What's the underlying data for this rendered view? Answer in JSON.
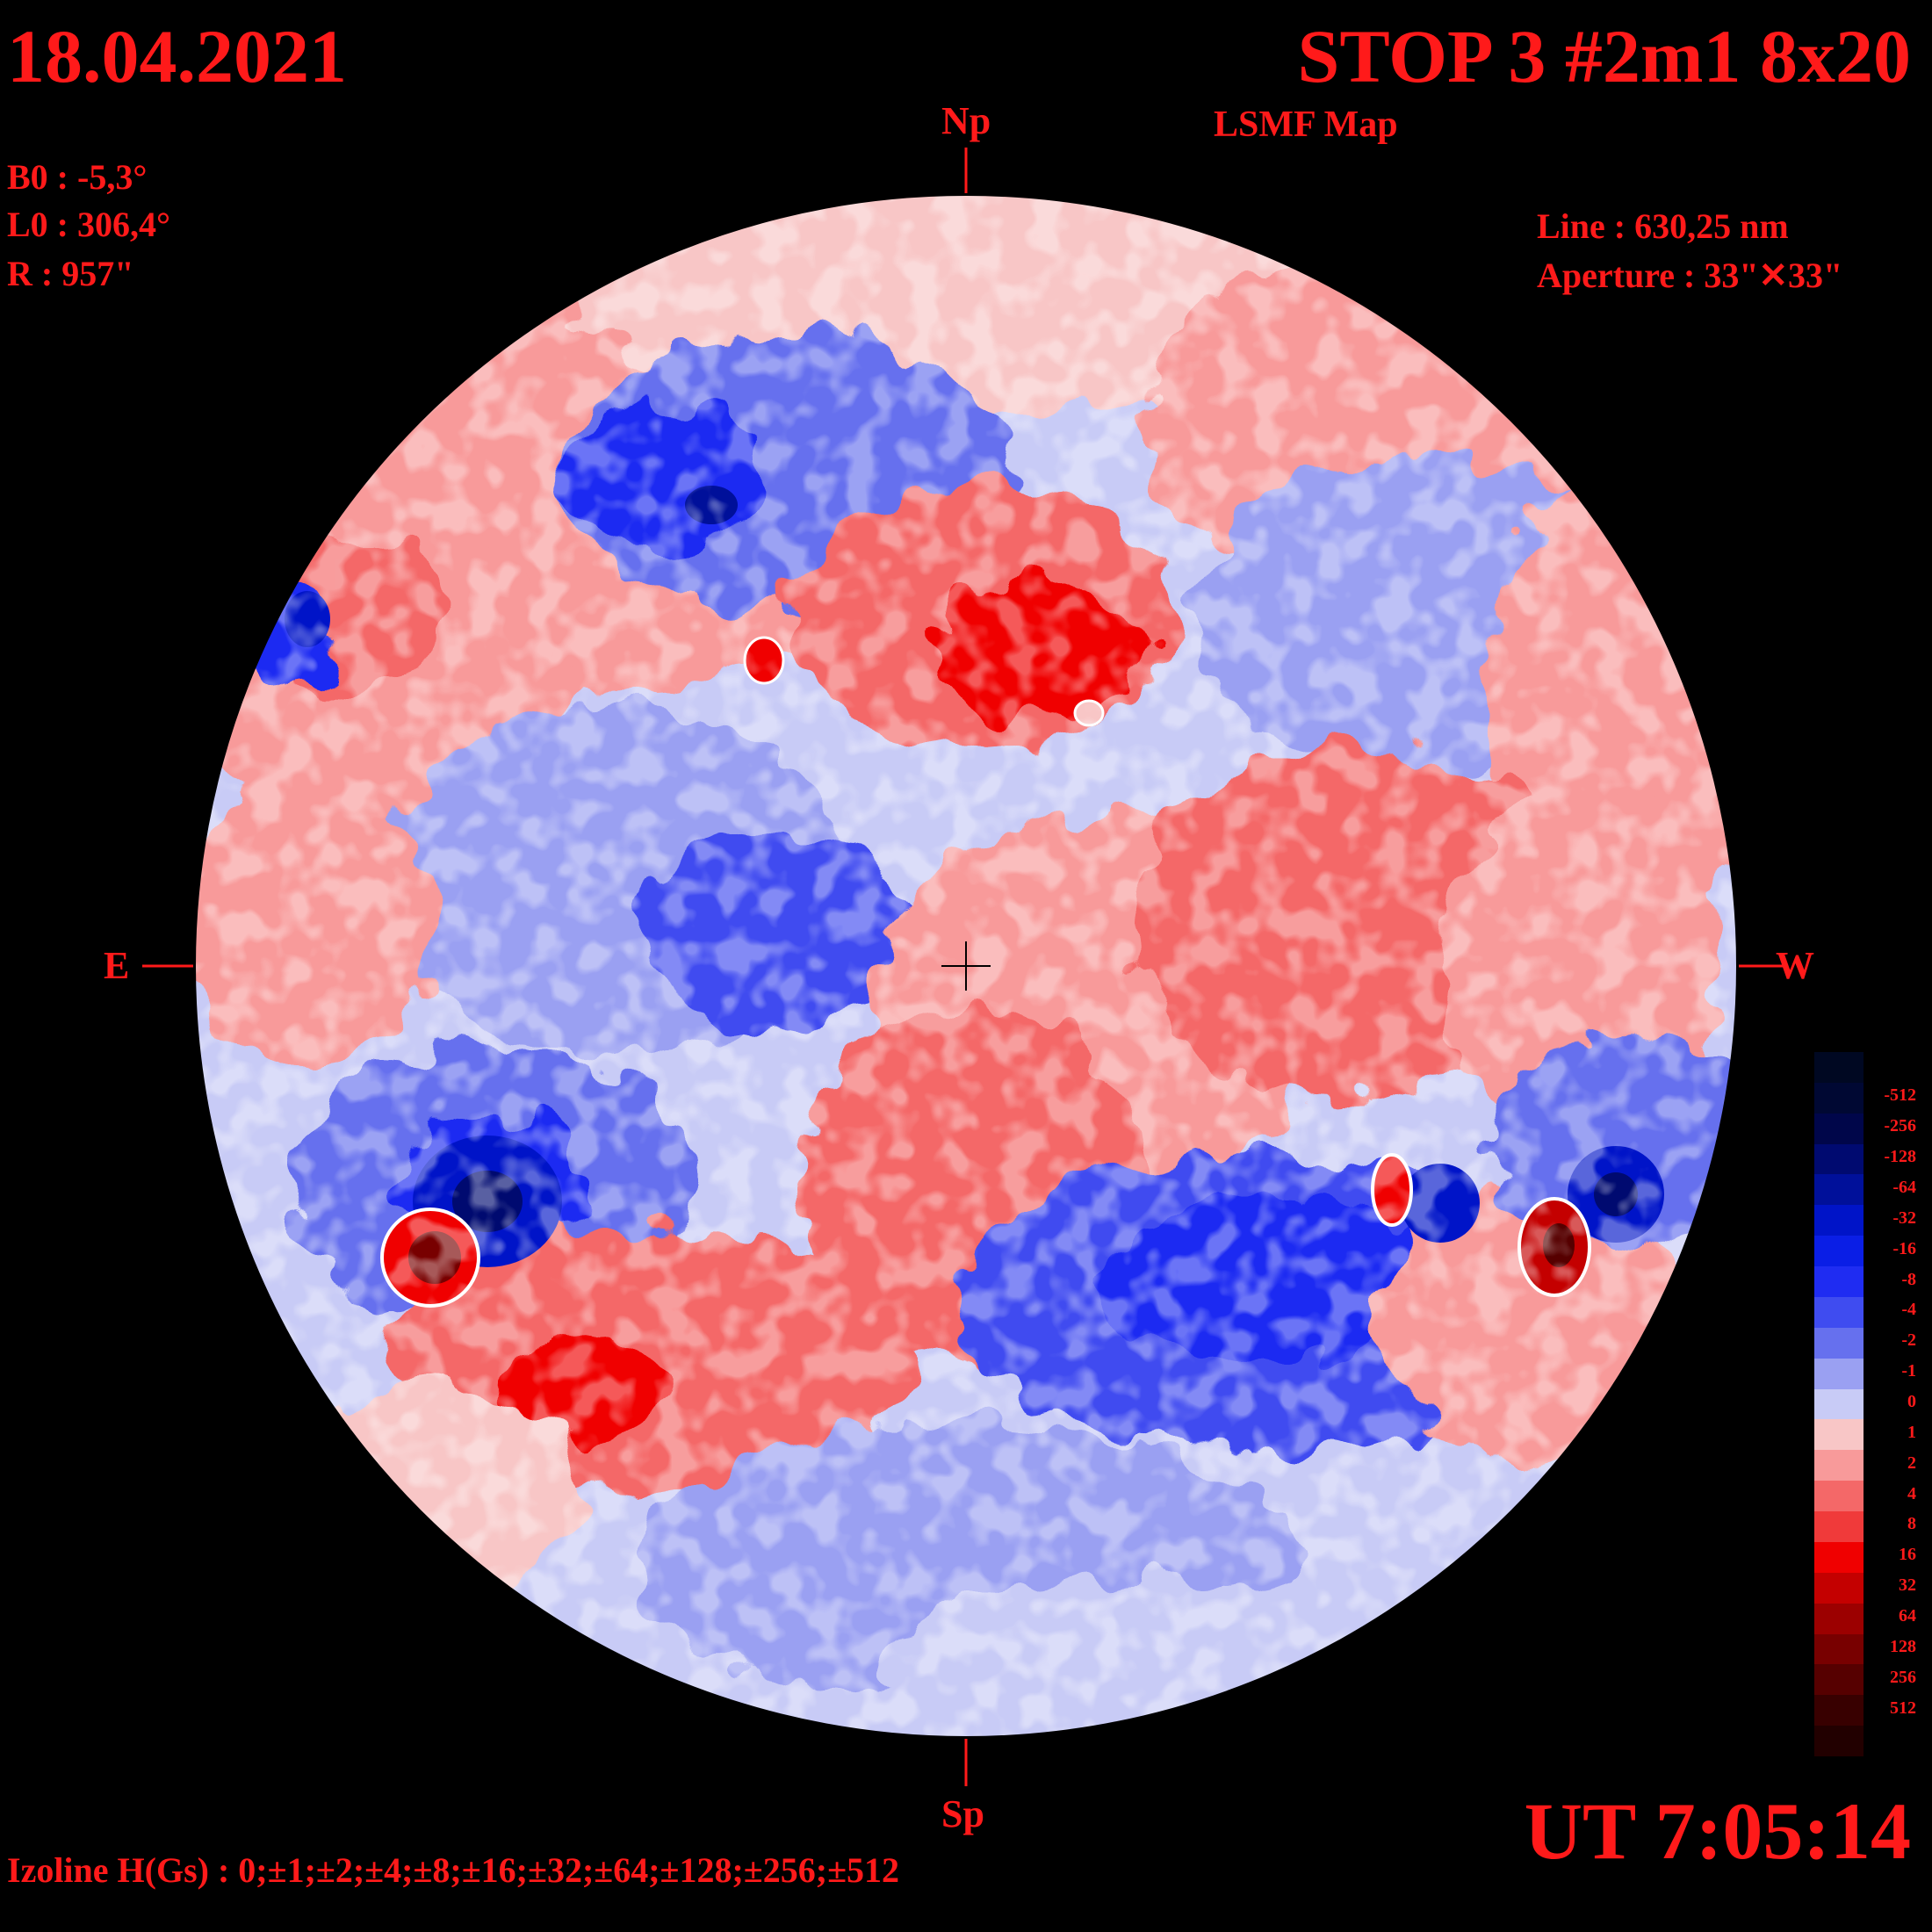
{
  "header": {
    "date": "18.04.2021",
    "title": "STOP 3 #2m1 8x20",
    "subtitle": "LSMF  Map"
  },
  "params": {
    "b0": "B0 : -5,3°",
    "l0": "L0 : 306,4°",
    "radius": "R  : 957\"",
    "line": "Line :  630,25 nm",
    "aperture": "Aperture : 33\"✕33\""
  },
  "directions": {
    "north": "Np",
    "south": "Sp",
    "east": "E",
    "west": "W"
  },
  "footer": {
    "time": "UT 7:05:14",
    "izolines": "Izoline H(Gs) : 0;±1;±2;±4;±8;±16;±32;±64;±128;±256;±512"
  },
  "legend": {
    "labels": [
      "-512",
      "-256",
      "-128",
      "-64",
      "-32",
      "-16",
      "-8",
      "-4",
      "-2",
      "-1",
      "0",
      "1",
      "2",
      "4",
      "8",
      "16",
      "32",
      "64",
      "128",
      "256",
      "512"
    ],
    "colors": [
      "#000833",
      "#00064a",
      "#000a70",
      "#00109a",
      "#0014c8",
      "#0a1ee6",
      "#1f2cf2",
      "#3f4cf0",
      "#6670ee",
      "#9aa0f2",
      "#c8cbf6",
      "#f8c6c6",
      "#f89a9a",
      "#f46868",
      "#f03a3a",
      "#f00000",
      "#c40000",
      "#9c0000",
      "#780000",
      "#560000",
      "#380000"
    ],
    "extra_top": "#000822",
    "extra_bottom": "#220000"
  },
  "colors": {
    "text": "#ff1a1a",
    "background": "#000000",
    "neutral_zero_line": "#ffffff"
  }
}
